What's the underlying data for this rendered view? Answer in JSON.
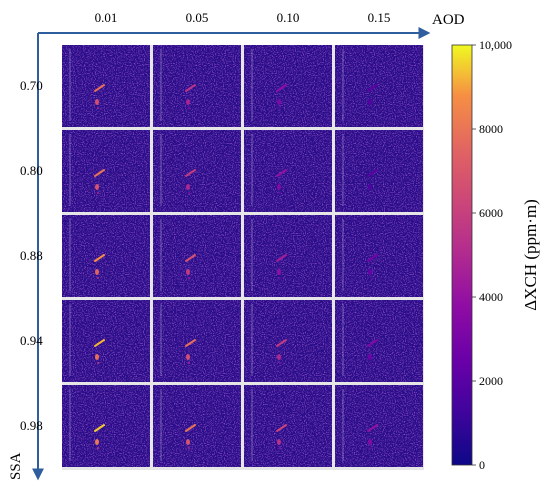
{
  "chart_data": {
    "type": "heatmap",
    "x_axis": {
      "label": "AOD",
      "tick_labels": [
        "0.01",
        "0.05",
        "0.10",
        "0.15"
      ],
      "values": [
        0.01,
        0.05,
        0.1,
        0.15
      ]
    },
    "y_axis": {
      "label": "SSA",
      "tick_labels": [
        "0.70",
        "0.80",
        "0.88",
        "0.94",
        "0.98"
      ],
      "values": [
        0.7,
        0.8,
        0.88,
        0.94,
        0.98
      ]
    },
    "colorbar": {
      "label": "ΔXCH (ppm·m)",
      "range": [
        0,
        10000
      ],
      "tick_values": [
        0,
        2000,
        4000,
        6000,
        8000,
        10000
      ],
      "tick_labels": [
        "0",
        "2000",
        "4000",
        "6000",
        "8000",
        "10,000"
      ],
      "colormap": "plasma"
    },
    "plume_intensity": [
      [
        0.78,
        0.55,
        0.38,
        0.22
      ],
      [
        0.8,
        0.58,
        0.4,
        0.2
      ],
      [
        0.88,
        0.68,
        0.45,
        0.28
      ],
      [
        0.92,
        0.78,
        0.58,
        0.32
      ],
      [
        0.95,
        0.8,
        0.62,
        0.4
      ]
    ],
    "grid": false
  },
  "colors": {
    "axis_arrow": "#2e5e9e",
    "background_noise": "#2a0f8a",
    "panel_separator": "#d9d9d9",
    "plume_high": "#f0f921",
    "plume_mid": "#fb9a3e",
    "plume_low": "#cc4778"
  }
}
